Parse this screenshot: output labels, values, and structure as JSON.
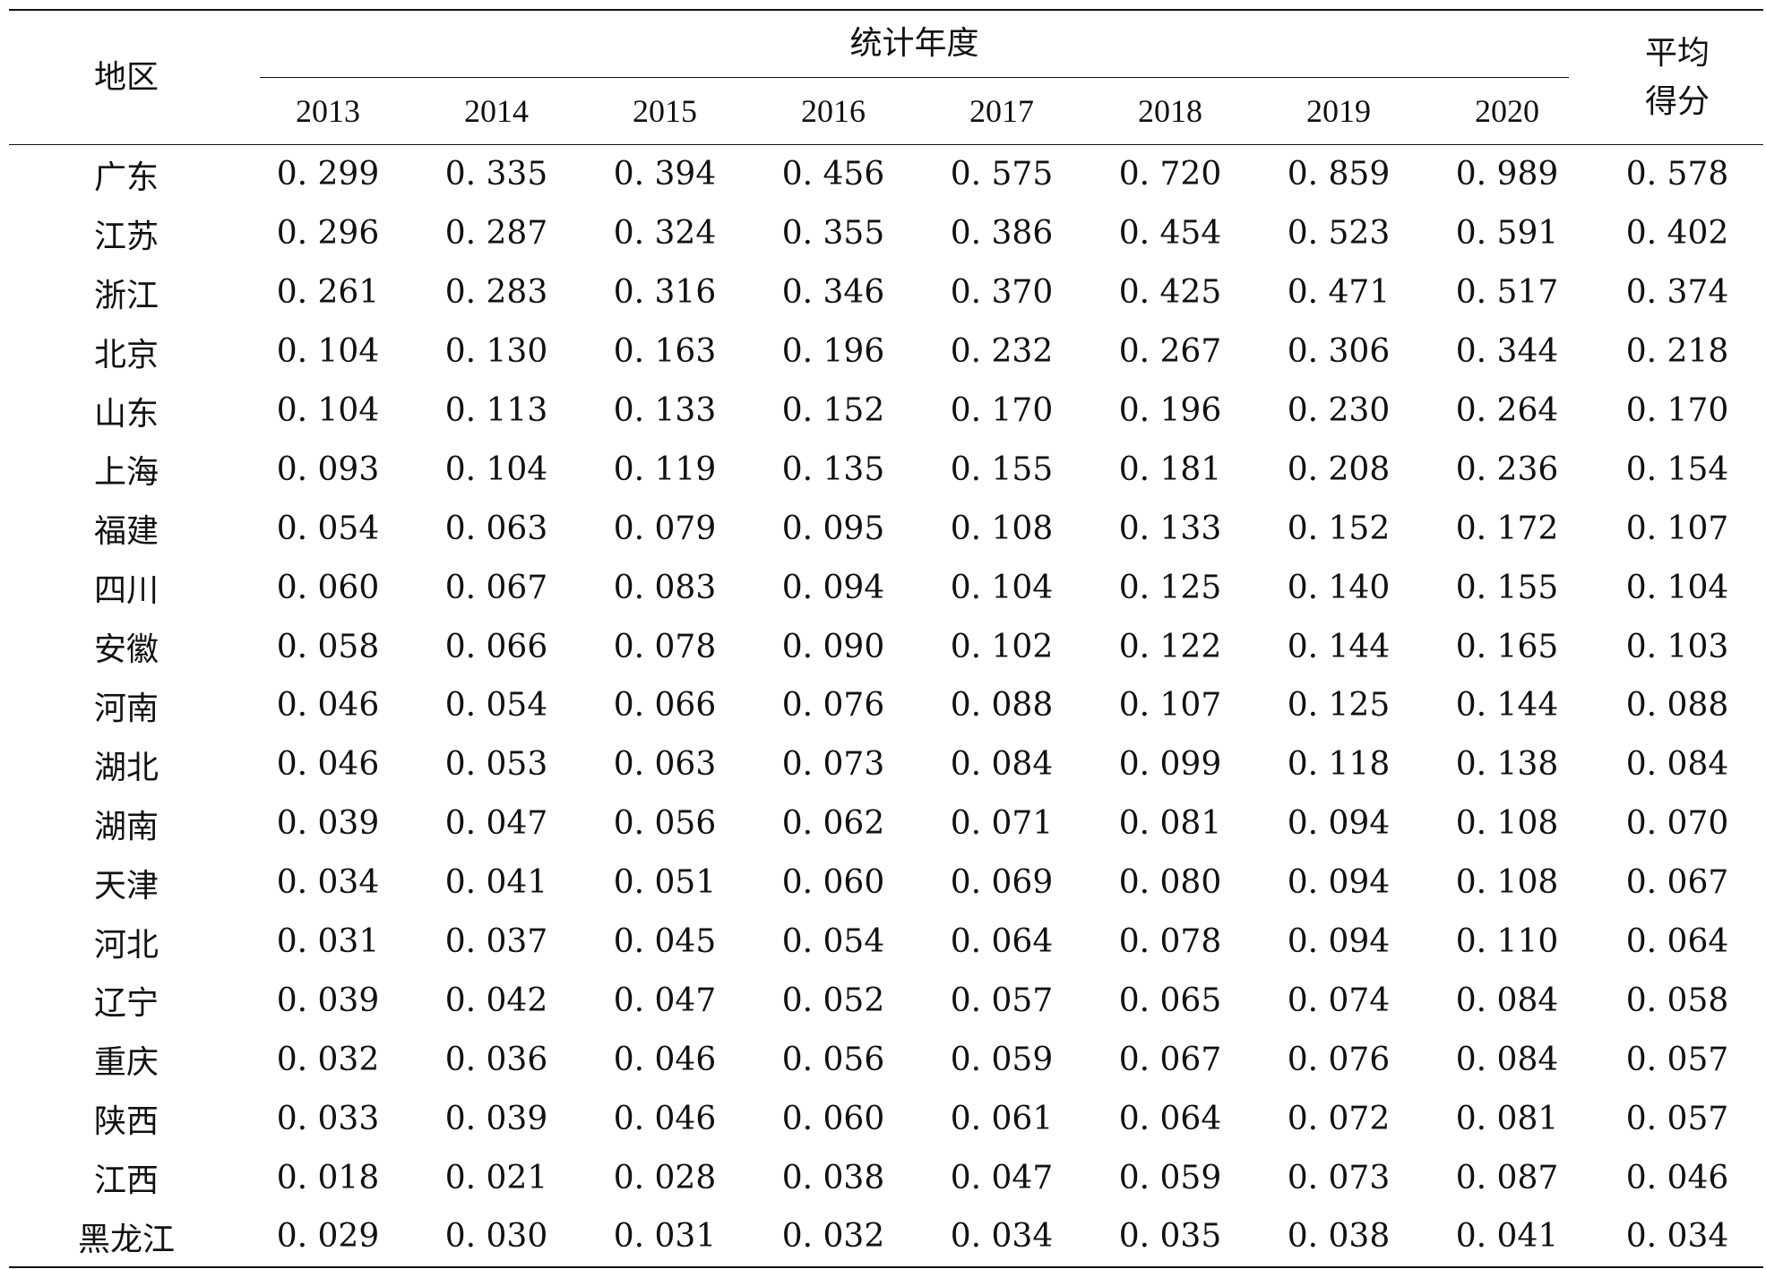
{
  "table": {
    "header": {
      "region": "地区",
      "group": "统计年度",
      "average": "平均得分",
      "years": [
        "2013",
        "2014",
        "2015",
        "2016",
        "2017",
        "2018",
        "2019",
        "2020"
      ]
    },
    "rows": [
      {
        "region": "广东",
        "values": [
          "0. 299",
          "0. 335",
          "0. 394",
          "0. 456",
          "0. 575",
          "0. 720",
          "0. 859",
          "0. 989"
        ],
        "average": "0. 578"
      },
      {
        "region": "江苏",
        "values": [
          "0. 296",
          "0. 287",
          "0. 324",
          "0. 355",
          "0. 386",
          "0. 454",
          "0. 523",
          "0. 591"
        ],
        "average": "0. 402"
      },
      {
        "region": "浙江",
        "values": [
          "0. 261",
          "0. 283",
          "0. 316",
          "0. 346",
          "0. 370",
          "0. 425",
          "0. 471",
          "0. 517"
        ],
        "average": "0. 374"
      },
      {
        "region": "北京",
        "values": [
          "0. 104",
          "0. 130",
          "0. 163",
          "0. 196",
          "0. 232",
          "0. 267",
          "0. 306",
          "0. 344"
        ],
        "average": "0. 218"
      },
      {
        "region": "山东",
        "values": [
          "0. 104",
          "0. 113",
          "0. 133",
          "0. 152",
          "0. 170",
          "0. 196",
          "0. 230",
          "0. 264"
        ],
        "average": "0. 170"
      },
      {
        "region": "上海",
        "values": [
          "0. 093",
          "0. 104",
          "0. 119",
          "0. 135",
          "0. 155",
          "0. 181",
          "0. 208",
          "0. 236"
        ],
        "average": "0. 154"
      },
      {
        "region": "福建",
        "values": [
          "0. 054",
          "0. 063",
          "0. 079",
          "0. 095",
          "0. 108",
          "0. 133",
          "0. 152",
          "0. 172"
        ],
        "average": "0. 107"
      },
      {
        "region": "四川",
        "values": [
          "0. 060",
          "0. 067",
          "0. 083",
          "0. 094",
          "0. 104",
          "0. 125",
          "0. 140",
          "0. 155"
        ],
        "average": "0. 104"
      },
      {
        "region": "安徽",
        "values": [
          "0. 058",
          "0. 066",
          "0. 078",
          "0. 090",
          "0. 102",
          "0. 122",
          "0. 144",
          "0. 165"
        ],
        "average": "0. 103"
      },
      {
        "region": "河南",
        "values": [
          "0. 046",
          "0. 054",
          "0. 066",
          "0. 076",
          "0. 088",
          "0. 107",
          "0. 125",
          "0. 144"
        ],
        "average": "0. 088"
      },
      {
        "region": "湖北",
        "values": [
          "0. 046",
          "0. 053",
          "0. 063",
          "0. 073",
          "0. 084",
          "0. 099",
          "0. 118",
          "0. 138"
        ],
        "average": "0. 084"
      },
      {
        "region": "湖南",
        "values": [
          "0. 039",
          "0. 047",
          "0. 056",
          "0. 062",
          "0. 071",
          "0. 081",
          "0. 094",
          "0. 108"
        ],
        "average": "0. 070"
      },
      {
        "region": "天津",
        "values": [
          "0. 034",
          "0. 041",
          "0. 051",
          "0. 060",
          "0. 069",
          "0. 080",
          "0. 094",
          "0. 108"
        ],
        "average": "0. 067"
      },
      {
        "region": "河北",
        "values": [
          "0. 031",
          "0. 037",
          "0. 045",
          "0. 054",
          "0. 064",
          "0. 078",
          "0. 094",
          "0. 110"
        ],
        "average": "0. 064"
      },
      {
        "region": "辽宁",
        "values": [
          "0. 039",
          "0. 042",
          "0. 047",
          "0. 052",
          "0. 057",
          "0. 065",
          "0. 074",
          "0. 084"
        ],
        "average": "0. 058"
      },
      {
        "region": "重庆",
        "values": [
          "0. 032",
          "0. 036",
          "0. 046",
          "0. 056",
          "0. 059",
          "0. 067",
          "0. 076",
          "0. 084"
        ],
        "average": "0. 057"
      },
      {
        "region": "陕西",
        "values": [
          "0. 033",
          "0. 039",
          "0. 046",
          "0. 060",
          "0. 061",
          "0. 064",
          "0. 072",
          "0. 081"
        ],
        "average": "0. 057"
      },
      {
        "region": "江西",
        "values": [
          "0. 018",
          "0. 021",
          "0. 028",
          "0. 038",
          "0. 047",
          "0. 059",
          "0. 073",
          "0. 087"
        ],
        "average": "0. 046"
      },
      {
        "region": "黑龙江",
        "values": [
          "0. 029",
          "0. 030",
          "0. 031",
          "0. 032",
          "0. 034",
          "0. 035",
          "0. 038",
          "0. 041"
        ],
        "average": "0. 034"
      }
    ]
  }
}
